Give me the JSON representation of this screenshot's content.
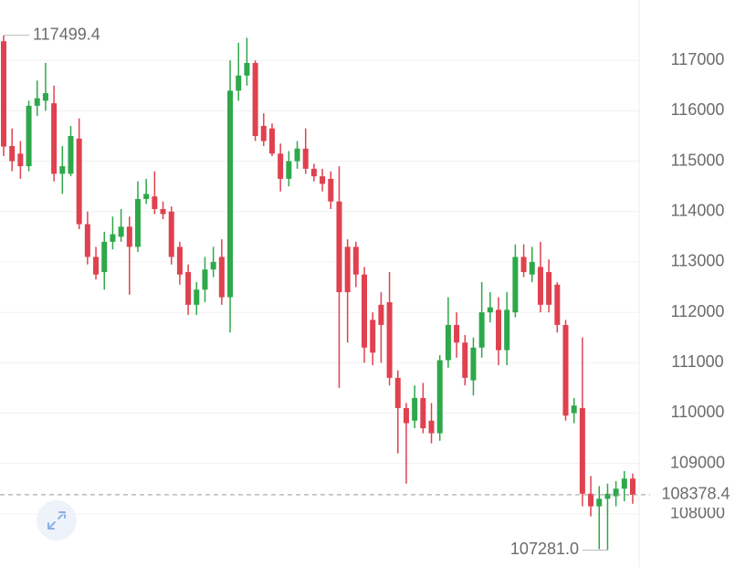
{
  "chart_data": {
    "type": "candlestick",
    "open": [
      117380,
      115300,
      115150,
      114900,
      116100,
      116200,
      116150,
      114750,
      114750,
      115450,
      113750,
      113100,
      112800,
      113400,
      113500,
      113700,
      113300,
      114250,
      114300,
      114050,
      114000,
      113300,
      112800,
      112150,
      112450,
      112850,
      113100,
      112300,
      116400,
      116700,
      116950,
      115700,
      115650,
      115150,
      114650,
      115000,
      115250,
      114850,
      114700,
      114650,
      114200,
      113300,
      113300,
      112750,
      111850,
      112150,
      112200,
      110700,
      110100,
      109850,
      110300,
      109850,
      109600,
      111050,
      111750,
      111400,
      110650,
      111300,
      112000,
      112050,
      111250,
      112000,
      113100,
      112750,
      112900,
      112800,
      112550,
      111750,
      110000,
      110100,
      108400,
      108150,
      108300,
      108350,
      108500,
      108700
    ],
    "high": [
      117499.4,
      115650,
      115400,
      116200,
      116600,
      116950,
      116500,
      115300,
      115700,
      115850,
      114000,
      113300,
      113600,
      113900,
      114050,
      113900,
      114600,
      114650,
      114800,
      114200,
      114100,
      113400,
      112950,
      112600,
      113100,
      113300,
      113450,
      117000,
      117350,
      117450,
      117000,
      115950,
      115750,
      115350,
      115200,
      115400,
      115650,
      114950,
      114850,
      114800,
      114900,
      113450,
      113400,
      112900,
      112000,
      112400,
      112800,
      110850,
      110200,
      110550,
      110600,
      110200,
      111150,
      112300,
      112000,
      111550,
      111500,
      112600,
      112400,
      112300,
      112400,
      113350,
      113350,
      113300,
      113400,
      113050,
      112600,
      111850,
      110300,
      111500,
      108750,
      108550,
      108600,
      108650,
      108850,
      108800
    ],
    "low": [
      115100,
      114800,
      114650,
      114800,
      115900,
      116000,
      114600,
      114350,
      114700,
      113650,
      112950,
      112650,
      112450,
      113250,
      113400,
      112350,
      113200,
      114150,
      113950,
      113850,
      112950,
      112550,
      111950,
      111950,
      112200,
      112700,
      112150,
      111600,
      116200,
      116500,
      115400,
      115300,
      115100,
      114400,
      114500,
      114850,
      114750,
      114600,
      114400,
      114050,
      110500,
      111400,
      112500,
      111000,
      110950,
      111000,
      110550,
      109200,
      108600,
      109700,
      109600,
      109400,
      109450,
      110900,
      111100,
      110550,
      110350,
      111100,
      111800,
      110950,
      110950,
      111900,
      112700,
      112600,
      112000,
      112000,
      111600,
      109850,
      109800,
      108150,
      107950,
      107300,
      107281,
      108150,
      108250,
      108200
    ],
    "close": [
      115290,
      115000,
      114900,
      116100,
      116250,
      116350,
      114750,
      114900,
      115500,
      113750,
      113100,
      112750,
      113400,
      113550,
      113700,
      113300,
      114250,
      114350,
      114050,
      113950,
      113100,
      112750,
      112150,
      112450,
      112850,
      113000,
      112300,
      116400,
      116700,
      116950,
      115500,
      115400,
      115150,
      114650,
      115000,
      115250,
      114850,
      114700,
      114550,
      114200,
      112400,
      112400,
      112750,
      111300,
      111200,
      111750,
      110700,
      110100,
      109800,
      110300,
      109700,
      109600,
      111050,
      111750,
      111400,
      110700,
      111300,
      112000,
      112100,
      111250,
      112050,
      113100,
      112800,
      113000,
      112150,
      112150,
      111750,
      109950,
      110150,
      108400,
      108150,
      108300,
      108400,
      108500,
      108700,
      108378.4
    ],
    "up_color": "#2ea84a",
    "down_color": "#e0414f",
    "ylim": [
      107000,
      118000
    ],
    "yticks": [
      108000,
      109000,
      110000,
      111000,
      112000,
      113000,
      114000,
      115000,
      116000,
      117000
    ],
    "grid": true,
    "high_marker": {
      "value": 117499.4,
      "label": "117499.4"
    },
    "low_marker": {
      "value": 107281,
      "label": "107281.0"
    },
    "last_price": {
      "value": 108378.4,
      "label": "108378.4"
    }
  }
}
